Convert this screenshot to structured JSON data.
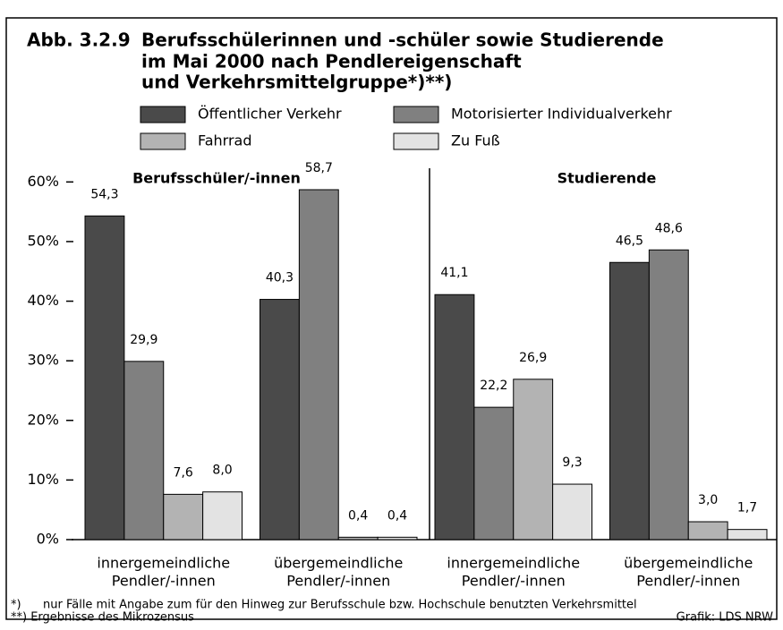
{
  "chart_data": {
    "type": "bar",
    "figure_label": "Abb. 3.2.9",
    "title": [
      "Berufsschülerinnen und -schüler sowie Studierende",
      "im Mai 2000 nach Pendlereigenschaft",
      "und Verkehrsmittelgruppe*)**)"
    ],
    "panel_labels": [
      "Berufsschüler/-innen",
      "Studierende"
    ],
    "categories": [
      [
        "innergemeindliche",
        "Pendler/-innen"
      ],
      [
        "übergemeindliche",
        "Pendler/-innen"
      ],
      [
        "innergemeindliche",
        "Pendler/-innen"
      ],
      [
        "übergemeindliche",
        "Pendler/-innen"
      ]
    ],
    "series": [
      {
        "name": "Öffentlicher Verkehr",
        "color": "#4a4a4a",
        "values": [
          54.3,
          40.3,
          41.1,
          46.5
        ],
        "value_labels": [
          "54,3",
          "40,3",
          "41,1",
          "46,5"
        ]
      },
      {
        "name": "Motorisierter Individualverkehr",
        "color": "#808080",
        "values": [
          29.9,
          58.7,
          22.2,
          48.6
        ],
        "value_labels": [
          "29,9",
          "58,7",
          "22,2",
          "48,6"
        ]
      },
      {
        "name": "Fahrrad",
        "color": "#b3b3b3",
        "values": [
          7.6,
          0.4,
          26.9,
          3.0
        ],
        "value_labels": [
          "7,6",
          "0,4",
          "26,9",
          "3,0"
        ]
      },
      {
        "name": "Zu Fuß",
        "color": "#e3e3e3",
        "values": [
          8.0,
          0.4,
          9.3,
          1.7
        ],
        "value_labels": [
          "8,0",
          "0,4",
          "9,3",
          "1,7"
        ]
      }
    ],
    "ylim": [
      0,
      62
    ],
    "yticks": [
      {
        "value": 0,
        "label": "0%"
      },
      {
        "value": 10,
        "label": "10%"
      },
      {
        "value": 20,
        "label": "20%"
      },
      {
        "value": 30,
        "label": "30%"
      },
      {
        "value": 40,
        "label": "40%"
      },
      {
        "value": 50,
        "label": "50%"
      },
      {
        "value": 60,
        "label": "60%"
      }
    ],
    "footnotes": [
      [
        "*)",
        "nur Fälle mit Angabe zum für den Hinweg zur Berufsschule bzw. Hochschule benutzten Verkehrsmittel"
      ],
      [
        "**) Ergebnisse des Mikrozensus"
      ]
    ],
    "source": "Grafik: LDS NRW"
  }
}
